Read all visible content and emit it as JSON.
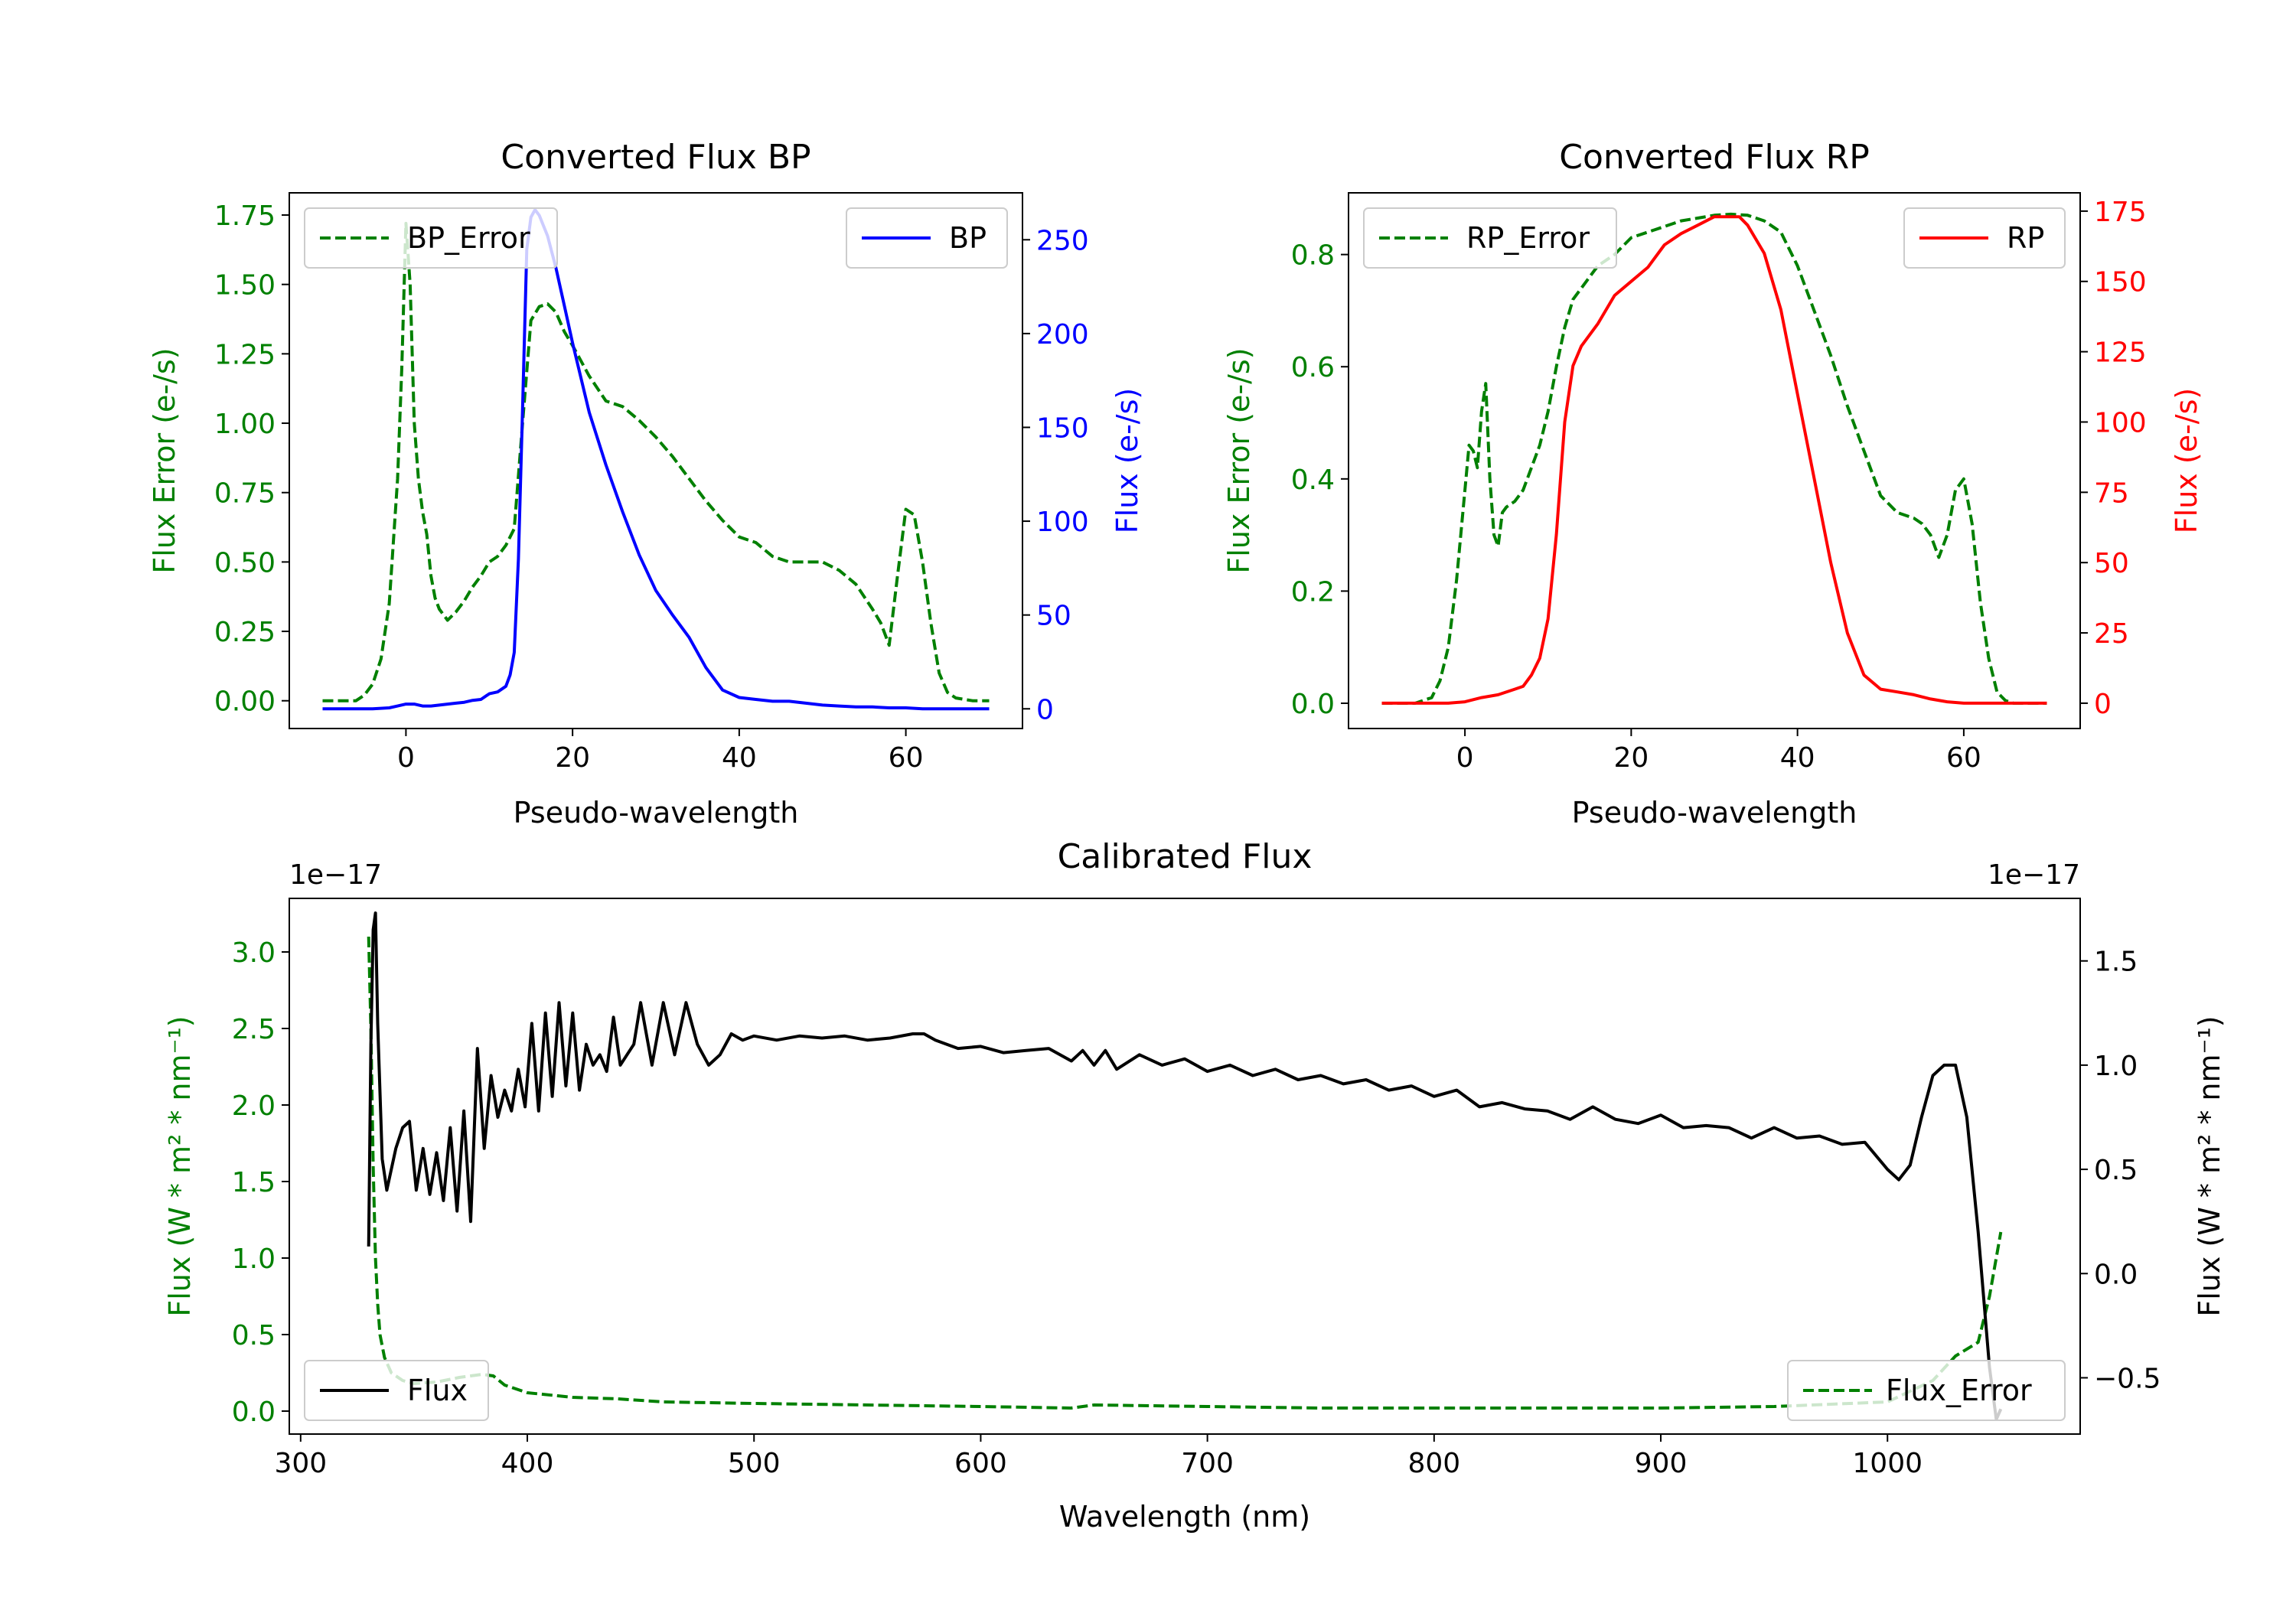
{
  "chart_data": [
    {
      "id": "bp",
      "type": "line",
      "title": "Converted Flux BP",
      "xlabel": "Pseudo-wavelength",
      "ylabel_left": "Flux Error (e-/s)",
      "ylabel_right": "Flux (e-/s)",
      "xlim": [
        -14,
        74
      ],
      "ylim_left": [
        -0.1,
        1.83
      ],
      "ylim_right": [
        -10.5,
        275
      ],
      "xticks": [
        0,
        20,
        40,
        60
      ],
      "xtick_labels": [
        "0",
        "20",
        "40",
        "60"
      ],
      "yticks_left": [
        0,
        0.25,
        0.5,
        0.75,
        1.0,
        1.25,
        1.5,
        1.75
      ],
      "ytick_labels_left": [
        "0.00",
        "0.25",
        "0.50",
        "0.75",
        "1.00",
        "1.25",
        "1.50",
        "1.75"
      ],
      "yticks_right": [
        0,
        50,
        100,
        150,
        200,
        250
      ],
      "ytick_labels_right": [
        "0",
        "50",
        "100",
        "150",
        "200",
        "250"
      ],
      "colors": {
        "left_axis": "#008000",
        "right_axis": "#0000ff"
      },
      "series": [
        {
          "name": "BP_Error",
          "axis": "left",
          "color": "#008000",
          "style": "dashed",
          "legend": "BP_Error",
          "legend_position": "upper left",
          "x": [
            -10,
            -6,
            -5,
            -4,
            -3,
            -2,
            -1,
            -0.5,
            0,
            0.5,
            1,
            1.5,
            2,
            2.5,
            3,
            3.5,
            4,
            5,
            6,
            7,
            8,
            9,
            10,
            11,
            12,
            13,
            14,
            15,
            16,
            17,
            18,
            19,
            20,
            22,
            24,
            26,
            28,
            30,
            32,
            34,
            36,
            38,
            40,
            42,
            44,
            46,
            48,
            50,
            52,
            54,
            56,
            57,
            58,
            59,
            60,
            61,
            62,
            63,
            64,
            65,
            66,
            68,
            70
          ],
          "y": [
            0,
            0,
            0.02,
            0.06,
            0.15,
            0.35,
            0.8,
            1.2,
            1.72,
            1.5,
            1.0,
            0.8,
            0.68,
            0.6,
            0.45,
            0.37,
            0.33,
            0.29,
            0.32,
            0.36,
            0.41,
            0.45,
            0.5,
            0.52,
            0.56,
            0.62,
            1.0,
            1.37,
            1.42,
            1.43,
            1.4,
            1.33,
            1.28,
            1.17,
            1.08,
            1.06,
            1.01,
            0.95,
            0.88,
            0.8,
            0.72,
            0.65,
            0.59,
            0.57,
            0.52,
            0.5,
            0.5,
            0.5,
            0.47,
            0.42,
            0.33,
            0.28,
            0.2,
            0.45,
            0.69,
            0.67,
            0.5,
            0.28,
            0.1,
            0.03,
            0.01,
            0,
            0
          ]
        },
        {
          "name": "BP",
          "axis": "right",
          "color": "#0000ff",
          "style": "solid",
          "legend": "BP",
          "legend_position": "upper right",
          "x": [
            -10,
            -6,
            -4,
            -2,
            -1,
            0,
            1,
            2,
            3,
            4,
            5,
            6,
            7,
            8,
            9,
            10,
            11,
            12,
            12.5,
            13,
            13.5,
            14,
            14.5,
            15,
            15.5,
            16,
            17,
            18,
            19,
            20,
            22,
            24,
            26,
            28,
            30,
            32,
            34,
            36,
            38,
            40,
            42,
            44,
            46,
            48,
            50,
            52,
            54,
            56,
            58,
            60,
            62,
            64,
            66,
            68,
            70
          ],
          "y": [
            0,
            0,
            0,
            0.5,
            1.5,
            2.5,
            2.5,
            1.5,
            1.5,
            2,
            2.5,
            3,
            3.5,
            4.5,
            5,
            8,
            9,
            12,
            18,
            30,
            80,
            160,
            245,
            262,
            266,
            263,
            252,
            235,
            215,
            195,
            158,
            130,
            105,
            82,
            63,
            50,
            38,
            22,
            10,
            6,
            5,
            4,
            4,
            3,
            2,
            1.5,
            1,
            1,
            0.5,
            0.5,
            0,
            0,
            0,
            0,
            0
          ]
        }
      ]
    },
    {
      "id": "rp",
      "type": "line",
      "title": "Converted Flux RP",
      "xlabel": "Pseudo-wavelength",
      "ylabel_left": "Flux Error (e-/s)",
      "ylabel_right": "Flux (e-/s)",
      "xlim": [
        -14,
        74
      ],
      "ylim_left": [
        -0.045,
        0.91
      ],
      "ylim_right": [
        -9,
        181.5
      ],
      "xticks": [
        0,
        20,
        40,
        60
      ],
      "xtick_labels": [
        "0",
        "20",
        "40",
        "60"
      ],
      "yticks_left": [
        0,
        0.2,
        0.4,
        0.6,
        0.8
      ],
      "ytick_labels_left": [
        "0.0",
        "0.2",
        "0.4",
        "0.6",
        "0.8"
      ],
      "yticks_right": [
        0,
        25,
        50,
        75,
        100,
        125,
        150,
        175
      ],
      "ytick_labels_right": [
        "0",
        "25",
        "50",
        "75",
        "100",
        "125",
        "150",
        "175"
      ],
      "colors": {
        "left_axis": "#008000",
        "right_axis": "#ff0000"
      },
      "series": [
        {
          "name": "RP_Error",
          "axis": "left",
          "color": "#008000",
          "style": "dashed",
          "legend": "RP_Error",
          "legend_position": "upper left",
          "x": [
            -10,
            -6,
            -4,
            -3,
            -2,
            -1,
            0,
            0.5,
            1,
            1.5,
            2,
            2.5,
            3,
            3.5,
            4,
            4.5,
            5,
            6,
            7,
            8,
            9,
            10,
            11,
            12,
            13,
            14,
            15,
            16,
            18,
            20,
            22,
            24,
            26,
            28,
            30,
            32,
            34,
            36,
            38,
            40,
            42,
            44,
            46,
            48,
            50,
            52,
            54,
            55,
            56,
            57,
            58,
            59,
            60,
            61,
            62,
            63,
            64,
            65,
            66,
            68,
            70
          ],
          "y": [
            0,
            0,
            0.01,
            0.04,
            0.1,
            0.22,
            0.38,
            0.46,
            0.45,
            0.42,
            0.52,
            0.57,
            0.4,
            0.3,
            0.28,
            0.34,
            0.35,
            0.36,
            0.38,
            0.42,
            0.46,
            0.52,
            0.6,
            0.67,
            0.72,
            0.74,
            0.76,
            0.78,
            0.8,
            0.83,
            0.84,
            0.85,
            0.86,
            0.865,
            0.87,
            0.872,
            0.87,
            0.86,
            0.84,
            0.78,
            0.7,
            0.62,
            0.53,
            0.45,
            0.37,
            0.34,
            0.33,
            0.32,
            0.3,
            0.26,
            0.3,
            0.38,
            0.4,
            0.32,
            0.18,
            0.08,
            0.02,
            0.005,
            0,
            0,
            0
          ]
        },
        {
          "name": "RP",
          "axis": "right",
          "color": "#ff0000",
          "style": "solid",
          "legend": "RP",
          "legend_position": "upper right",
          "x": [
            -10,
            -4,
            -2,
            0,
            2,
            4,
            6,
            7,
            8,
            9,
            10,
            11,
            12,
            13,
            14,
            16,
            18,
            20,
            22,
            24,
            26,
            28,
            30,
            32,
            33,
            34,
            36,
            38,
            40,
            42,
            44,
            46,
            48,
            50,
            52,
            54,
            56,
            58,
            60,
            62,
            66,
            70
          ],
          "y": [
            0,
            0,
            0,
            0.5,
            2,
            3,
            5,
            6,
            10,
            16,
            30,
            60,
            100,
            120,
            127,
            135,
            145,
            150,
            155,
            163,
            167,
            170,
            173,
            173,
            173,
            170,
            160,
            140,
            110,
            80,
            50,
            25,
            10,
            5,
            4,
            3,
            1.5,
            0.5,
            0,
            0,
            0,
            0
          ]
        }
      ]
    },
    {
      "id": "cal",
      "type": "line",
      "title": "Calibrated Flux",
      "xlabel": "Wavelength (nm)",
      "ylabel_left": "Flux (W * m² * nm⁻¹)",
      "ylabel_right": "Flux (W * m² * nm⁻¹)",
      "offset_left": "1e−17",
      "offset_right": "1e−17",
      "xlim": [
        295,
        1085
      ],
      "ylim_left": [
        -0.15,
        3.35
      ],
      "ylim_right": [
        -0.77,
        1.8
      ],
      "xticks": [
        300,
        400,
        500,
        600,
        700,
        800,
        900,
        1000
      ],
      "xtick_labels": [
        "300",
        "400",
        "500",
        "600",
        "700",
        "800",
        "900",
        "1000"
      ],
      "yticks_left": [
        0,
        0.5,
        1.0,
        1.5,
        2.0,
        2.5,
        3.0
      ],
      "ytick_labels_left": [
        "0.0",
        "0.5",
        "1.0",
        "1.5",
        "2.0",
        "2.5",
        "3.0"
      ],
      "yticks_right": [
        -0.5,
        0,
        0.5,
        1.0,
        1.5
      ],
      "ytick_labels_right": [
        "−0.5",
        "0.0",
        "0.5",
        "1.0",
        "1.5"
      ],
      "colors": {
        "left_axis": "#008000",
        "right_axis": "#000000"
      },
      "series": [
        {
          "name": "Flux_Error",
          "axis": "left",
          "color": "#008000",
          "style": "dashed",
          "legend": "Flux_Error",
          "legend_position": "lower right",
          "x": [
            330,
            331,
            332,
            333,
            334,
            335,
            337,
            340,
            345,
            350,
            360,
            370,
            375,
            380,
            385,
            390,
            400,
            420,
            440,
            460,
            500,
            550,
            600,
            640,
            650,
            700,
            750,
            800,
            850,
            900,
            950,
            1000,
            1020,
            1030,
            1040,
            1045,
            1050
          ],
          "y": [
            3.1,
            2.5,
            1.6,
            1.0,
            0.7,
            0.5,
            0.35,
            0.25,
            0.2,
            0.18,
            0.19,
            0.22,
            0.23,
            0.24,
            0.23,
            0.17,
            0.12,
            0.09,
            0.08,
            0.06,
            0.05,
            0.04,
            0.03,
            0.02,
            0.04,
            0.03,
            0.02,
            0.02,
            0.02,
            0.02,
            0.03,
            0.06,
            0.2,
            0.36,
            0.45,
            0.75,
            1.17
          ]
        },
        {
          "name": "Flux",
          "axis": "right",
          "color": "#000000",
          "style": "solid",
          "legend": "Flux",
          "legend_position": "lower left",
          "x": [
            330,
            331,
            332,
            333,
            334,
            336,
            338,
            342,
            345,
            348,
            351,
            354,
            357,
            360,
            363,
            366,
            369,
            372,
            375,
            378,
            381,
            384,
            387,
            390,
            393,
            396,
            399,
            402,
            405,
            408,
            411,
            414,
            417,
            420,
            423,
            426,
            429,
            432,
            435,
            438,
            441,
            444,
            447,
            450,
            455,
            460,
            465,
            470,
            475,
            480,
            485,
            490,
            495,
            500,
            510,
            520,
            530,
            540,
            550,
            560,
            570,
            575,
            580,
            590,
            600,
            610,
            620,
            630,
            640,
            645,
            650,
            655,
            660,
            670,
            680,
            690,
            700,
            710,
            720,
            730,
            740,
            750,
            760,
            770,
            780,
            790,
            800,
            810,
            820,
            830,
            840,
            850,
            860,
            870,
            880,
            890,
            900,
            910,
            920,
            930,
            940,
            950,
            960,
            970,
            980,
            990,
            1000,
            1005,
            1010,
            1015,
            1020,
            1025,
            1030,
            1035,
            1040,
            1045,
            1048,
            1050
          ],
          "y": [
            0.13,
            1.1,
            1.65,
            1.73,
            1.2,
            0.55,
            0.4,
            0.6,
            0.7,
            0.73,
            0.4,
            0.6,
            0.38,
            0.58,
            0.35,
            0.7,
            0.3,
            0.78,
            0.25,
            1.08,
            0.6,
            0.95,
            0.75,
            0.88,
            0.78,
            0.98,
            0.8,
            1.2,
            0.78,
            1.25,
            0.85,
            1.3,
            0.9,
            1.25,
            0.88,
            1.1,
            1.0,
            1.05,
            0.97,
            1.23,
            1.0,
            1.05,
            1.1,
            1.3,
            1.0,
            1.3,
            1.05,
            1.3,
            1.1,
            1.0,
            1.05,
            1.15,
            1.12,
            1.14,
            1.12,
            1.14,
            1.13,
            1.14,
            1.12,
            1.13,
            1.15,
            1.15,
            1.12,
            1.08,
            1.09,
            1.06,
            1.07,
            1.08,
            1.02,
            1.07,
            1.0,
            1.07,
            0.98,
            1.05,
            1.0,
            1.03,
            0.97,
            1.0,
            0.95,
            0.98,
            0.93,
            0.95,
            0.91,
            0.93,
            0.88,
            0.9,
            0.85,
            0.88,
            0.8,
            0.82,
            0.79,
            0.78,
            0.74,
            0.8,
            0.74,
            0.72,
            0.76,
            0.7,
            0.71,
            0.7,
            0.65,
            0.7,
            0.65,
            0.66,
            0.62,
            0.63,
            0.5,
            0.45,
            0.52,
            0.75,
            0.95,
            1.0,
            1.0,
            0.75,
            0.2,
            -0.45,
            -0.7,
            -0.65
          ]
        }
      ]
    }
  ]
}
